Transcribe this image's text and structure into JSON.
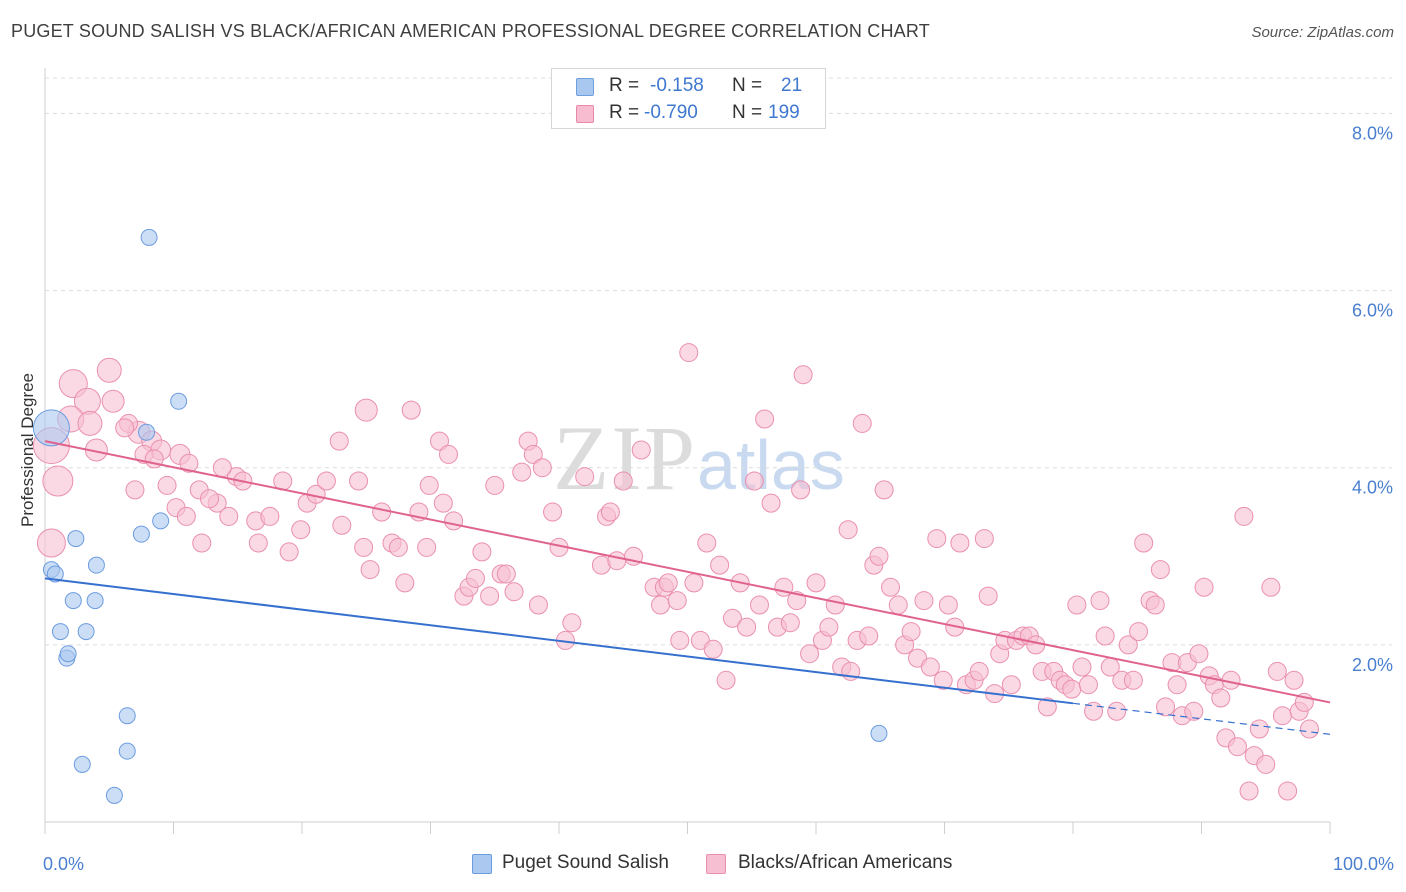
{
  "header": {
    "title": "PUGET SOUND SALISH VS BLACK/AFRICAN AMERICAN PROFESSIONAL DEGREE CORRELATION CHART",
    "source": "Source: ZipAtlas.com"
  },
  "watermark": {
    "part1": "ZIP",
    "part2": "atlas"
  },
  "legend": {
    "rows": [
      {
        "r_label": "R =",
        "r_value": "-0.158",
        "n_label": "N =",
        "n_value": "21",
        "color": "#a9c8f0",
        "border": "#6f9fdc"
      },
      {
        "r_label": "R =",
        "r_value": "-0.790",
        "n_label": "N =",
        "n_value": "199",
        "color": "#f7bcd0",
        "border": "#e889a8"
      }
    ]
  },
  "bottom_legend": {
    "series_a": "Puget Sound Salish",
    "series_b": "Blacks/African Americans"
  },
  "colors": {
    "blue_fill": "#aac8f0",
    "blue_stroke": "#6c9ce0",
    "blue_line": "#3570cf",
    "pink_fill": "#f7bfd2",
    "pink_stroke": "#ea8fb0",
    "pink_line": "#e0628f",
    "grid": "#dcdcdc",
    "axis_text": "#4a7fd0"
  },
  "chart_data": {
    "type": "scatter",
    "title": "PUGET SOUND SALISH VS BLACK/AFRICAN AMERICAN PROFESSIONAL DEGREE CORRELATION CHART",
    "xlabel": "",
    "ylabel": "Professional Degree",
    "xlim": [
      0,
      100
    ],
    "ylim": [
      0,
      8.4
    ],
    "yticks": [
      2,
      4,
      6,
      8
    ],
    "ytick_labels": [
      "2.0%",
      "4.0%",
      "6.0%",
      "8.0%"
    ],
    "xtick_labels": [
      "0.0%",
      "100.0%"
    ],
    "series": [
      {
        "name": "Puget Sound Salish",
        "r": -0.158,
        "n": 21,
        "trend": {
          "x0": 0,
          "y0": 2.75,
          "x1": 80,
          "y1": 1.34,
          "dash_to_x": 100,
          "dash_to_y": 0.99
        },
        "points": [
          [
            0.5,
            4.45,
            18
          ],
          [
            0.5,
            2.85,
            8
          ],
          [
            0.8,
            2.8,
            8
          ],
          [
            2.2,
            2.5,
            8
          ],
          [
            4,
            2.9,
            8
          ],
          [
            2.4,
            3.2,
            8
          ],
          [
            1.2,
            2.15,
            8
          ],
          [
            3.2,
            2.15,
            8
          ],
          [
            1.7,
            1.85,
            8
          ],
          [
            1.8,
            1.9,
            8
          ],
          [
            3.9,
            2.5,
            8
          ],
          [
            2.9,
            0.65,
            8
          ],
          [
            6.4,
            1.2,
            8
          ],
          [
            6.4,
            0.8,
            8
          ],
          [
            5.4,
            0.3,
            8
          ],
          [
            8.1,
            6.6,
            8
          ],
          [
            10.4,
            4.75,
            8
          ],
          [
            7.9,
            4.4,
            8
          ],
          [
            9.0,
            3.4,
            8
          ],
          [
            7.5,
            3.25,
            8
          ],
          [
            64.9,
            1.0,
            8
          ]
        ]
      },
      {
        "name": "Blacks/African Americans",
        "r": -0.79,
        "n": 199,
        "trend": {
          "x0": 0,
          "y0": 4.3,
          "x1": 100,
          "y1": 1.35
        },
        "points": [
          [
            0.5,
            4.25,
            18
          ],
          [
            1.0,
            3.85,
            15
          ],
          [
            2.2,
            4.95,
            14
          ],
          [
            0.5,
            3.15,
            14
          ],
          [
            3.3,
            4.75,
            13
          ],
          [
            2.0,
            4.55,
            13
          ],
          [
            5.0,
            5.1,
            12
          ],
          [
            3.5,
            4.5,
            12
          ],
          [
            7.3,
            4.4,
            11
          ],
          [
            5.3,
            4.75,
            11
          ],
          [
            4.0,
            4.2,
            11
          ],
          [
            8.3,
            4.3,
            10
          ],
          [
            9.0,
            4.2,
            10
          ],
          [
            10.5,
            4.15,
            10
          ],
          [
            11.2,
            4.05,
            9
          ],
          [
            12,
            3.75,
            9
          ],
          [
            13.4,
            3.6,
            9
          ],
          [
            14.9,
            3.9,
            9
          ],
          [
            16.4,
            3.4,
            9
          ],
          [
            7.7,
            4.15,
            9
          ],
          [
            7.0,
            3.75,
            9
          ],
          [
            6.5,
            4.5,
            9
          ],
          [
            6.2,
            4.45,
            9
          ],
          [
            8.5,
            4.1,
            9
          ],
          [
            9.5,
            3.8,
            9
          ],
          [
            10.2,
            3.55,
            9
          ],
          [
            11.0,
            3.45,
            9
          ],
          [
            12.2,
            3.15,
            9
          ],
          [
            12.8,
            3.65,
            9
          ],
          [
            13.8,
            4.0,
            9
          ],
          [
            14.3,
            3.45,
            9
          ],
          [
            15.4,
            3.85,
            9
          ],
          [
            16.6,
            3.15,
            9
          ],
          [
            17.5,
            3.45,
            9
          ],
          [
            18.5,
            3.85,
            9
          ],
          [
            19.0,
            3.05,
            9
          ],
          [
            19.9,
            3.3,
            9
          ],
          [
            20.4,
            3.6,
            9
          ],
          [
            21.1,
            3.7,
            9
          ],
          [
            21.9,
            3.85,
            9
          ],
          [
            22.9,
            4.3,
            9
          ],
          [
            23.1,
            3.35,
            9
          ],
          [
            24.4,
            3.85,
            9
          ],
          [
            25.0,
            4.65,
            11
          ],
          [
            24.8,
            3.1,
            9
          ],
          [
            25.3,
            2.85,
            9
          ],
          [
            26.2,
            3.5,
            9
          ],
          [
            27.0,
            3.15,
            9
          ],
          [
            27.5,
            3.1,
            9
          ],
          [
            28.0,
            2.7,
            9
          ],
          [
            28.5,
            4.65,
            9
          ],
          [
            29.1,
            3.5,
            9
          ],
          [
            29.7,
            3.1,
            9
          ],
          [
            29.9,
            3.8,
            9
          ],
          [
            30.7,
            4.3,
            9
          ],
          [
            31.0,
            3.6,
            9
          ],
          [
            31.4,
            4.15,
            9
          ],
          [
            31.8,
            3.4,
            9
          ],
          [
            32.6,
            2.55,
            9
          ],
          [
            33.0,
            2.65,
            9
          ],
          [
            33.5,
            2.75,
            9
          ],
          [
            34.0,
            3.05,
            9
          ],
          [
            34.6,
            2.55,
            9
          ],
          [
            35.0,
            3.8,
            9
          ],
          [
            35.5,
            2.8,
            9
          ],
          [
            35.9,
            2.8,
            9
          ],
          [
            36.5,
            2.6,
            9
          ],
          [
            37.1,
            3.95,
            9
          ],
          [
            37.6,
            4.3,
            9
          ],
          [
            38.0,
            4.15,
            9
          ],
          [
            38.4,
            2.45,
            9
          ],
          [
            38.7,
            4.0,
            9
          ],
          [
            39.5,
            3.5,
            9
          ],
          [
            40.0,
            3.1,
            9
          ],
          [
            40.5,
            2.05,
            9
          ],
          [
            41.0,
            2.25,
            9
          ],
          [
            42.0,
            3.9,
            9
          ],
          [
            43.3,
            2.9,
            9
          ],
          [
            43.7,
            3.45,
            9
          ],
          [
            44.0,
            3.5,
            9
          ],
          [
            44.5,
            2.95,
            9
          ],
          [
            45.0,
            3.85,
            9
          ],
          [
            45.8,
            3.0,
            9
          ],
          [
            46.4,
            4.2,
            9
          ],
          [
            47.4,
            2.65,
            9
          ],
          [
            47.9,
            2.45,
            9
          ],
          [
            48.2,
            2.65,
            9
          ],
          [
            48.5,
            2.7,
            9
          ],
          [
            49.2,
            2.5,
            9
          ],
          [
            49.4,
            2.05,
            9
          ],
          [
            50.1,
            5.3,
            9
          ],
          [
            50.5,
            2.7,
            9
          ],
          [
            51.0,
            2.05,
            9
          ],
          [
            51.5,
            3.15,
            9
          ],
          [
            52.0,
            1.95,
            9
          ],
          [
            52.5,
            2.9,
            9
          ],
          [
            53.0,
            1.6,
            9
          ],
          [
            53.5,
            2.3,
            9
          ],
          [
            54.1,
            2.7,
            9
          ],
          [
            54.6,
            2.2,
            9
          ],
          [
            55.2,
            3.85,
            9
          ],
          [
            55.6,
            2.45,
            9
          ],
          [
            56.0,
            4.55,
            9
          ],
          [
            56.5,
            3.6,
            9
          ],
          [
            57.0,
            2.2,
            9
          ],
          [
            57.5,
            2.65,
            9
          ],
          [
            58.0,
            2.25,
            9
          ],
          [
            58.5,
            2.5,
            9
          ],
          [
            58.8,
            3.75,
            9
          ],
          [
            59.0,
            5.05,
            9
          ],
          [
            59.5,
            1.9,
            9
          ],
          [
            60.0,
            2.7,
            9
          ],
          [
            60.5,
            2.05,
            9
          ],
          [
            61.0,
            2.2,
            9
          ],
          [
            61.5,
            2.45,
            9
          ],
          [
            62.0,
            1.75,
            9
          ],
          [
            62.5,
            3.3,
            9
          ],
          [
            62.7,
            1.7,
            9
          ],
          [
            63.2,
            2.05,
            9
          ],
          [
            63.6,
            4.5,
            9
          ],
          [
            64.1,
            2.1,
            9
          ],
          [
            64.5,
            2.9,
            9
          ],
          [
            64.9,
            3.0,
            9
          ],
          [
            65.3,
            3.75,
            9
          ],
          [
            65.8,
            2.65,
            9
          ],
          [
            66.4,
            2.45,
            9
          ],
          [
            66.9,
            2.0,
            9
          ],
          [
            67.4,
            2.15,
            9
          ],
          [
            67.9,
            1.85,
            9
          ],
          [
            68.4,
            2.5,
            9
          ],
          [
            68.9,
            1.75,
            9
          ],
          [
            69.4,
            3.2,
            9
          ],
          [
            69.9,
            1.6,
            9
          ],
          [
            70.3,
            2.45,
            9
          ],
          [
            70.8,
            2.2,
            9
          ],
          [
            71.2,
            3.15,
            9
          ],
          [
            71.7,
            1.55,
            9
          ],
          [
            72.3,
            1.6,
            9
          ],
          [
            72.7,
            1.7,
            9
          ],
          [
            73.1,
            3.2,
            9
          ],
          [
            73.4,
            2.55,
            9
          ],
          [
            73.9,
            1.45,
            9
          ],
          [
            74.3,
            1.9,
            9
          ],
          [
            74.7,
            2.05,
            9
          ],
          [
            75.2,
            1.55,
            9
          ],
          [
            75.6,
            2.05,
            9
          ],
          [
            76.1,
            2.1,
            9
          ],
          [
            76.6,
            2.1,
            9
          ],
          [
            77.1,
            2.0,
            9
          ],
          [
            77.6,
            1.7,
            9
          ],
          [
            78.0,
            1.3,
            9
          ],
          [
            78.5,
            1.7,
            9
          ],
          [
            79.0,
            1.6,
            9
          ],
          [
            79.4,
            1.55,
            9
          ],
          [
            79.9,
            1.5,
            9
          ],
          [
            80.3,
            2.45,
            9
          ],
          [
            80.7,
            1.75,
            9
          ],
          [
            81.2,
            1.55,
            9
          ],
          [
            81.6,
            1.25,
            9
          ],
          [
            82.1,
            2.5,
            9
          ],
          [
            82.5,
            2.1,
            9
          ],
          [
            82.9,
            1.75,
            9
          ],
          [
            83.4,
            1.25,
            9
          ],
          [
            83.8,
            1.6,
            9
          ],
          [
            84.3,
            2.0,
            9
          ],
          [
            84.7,
            1.6,
            9
          ],
          [
            85.1,
            2.15,
            9
          ],
          [
            85.5,
            3.15,
            9
          ],
          [
            86.0,
            2.5,
            9
          ],
          [
            86.4,
            2.45,
            9
          ],
          [
            86.8,
            2.85,
            9
          ],
          [
            87.2,
            1.3,
            9
          ],
          [
            87.7,
            1.8,
            9
          ],
          [
            88.1,
            1.55,
            9
          ],
          [
            88.5,
            1.2,
            9
          ],
          [
            88.9,
            1.8,
            9
          ],
          [
            89.4,
            1.25,
            9
          ],
          [
            89.8,
            1.9,
            9
          ],
          [
            90.2,
            2.65,
            9
          ],
          [
            90.6,
            1.65,
            9
          ],
          [
            91.0,
            1.55,
            9
          ],
          [
            91.5,
            1.4,
            9
          ],
          [
            91.9,
            0.95,
            9
          ],
          [
            92.3,
            1.6,
            9
          ],
          [
            92.8,
            0.85,
            9
          ],
          [
            93.3,
            3.45,
            9
          ],
          [
            93.7,
            0.35,
            9
          ],
          [
            94.1,
            0.75,
            9
          ],
          [
            94.5,
            1.05,
            9
          ],
          [
            95.0,
            0.65,
            9
          ],
          [
            95.4,
            2.65,
            9
          ],
          [
            95.9,
            1.7,
            9
          ],
          [
            96.3,
            1.2,
            9
          ],
          [
            96.7,
            0.35,
            9
          ],
          [
            97.2,
            1.6,
            9
          ],
          [
            97.6,
            1.25,
            9
          ],
          [
            98.0,
            1.35,
            9
          ],
          [
            98.4,
            1.05,
            9
          ]
        ]
      }
    ]
  }
}
